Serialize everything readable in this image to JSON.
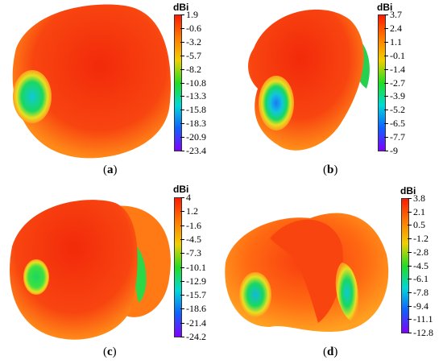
{
  "colors": {
    "palette": [
      "#ff1a00",
      "#ff7a00",
      "#f0d000",
      "#22dd22",
      "#00d8d8",
      "#1060ff",
      "#8000ff"
    ],
    "shape_main": "#f83a10",
    "shape_mid": "#ff7a14",
    "shape_edge": "#ffb020"
  },
  "panels": [
    {
      "id": "a",
      "caption": "a",
      "unit": "dBi",
      "ticks": [
        "1.9",
        "-0.6",
        "-3.2",
        "-5.7",
        "-8.2",
        "-10.8",
        "-13.3",
        "-15.8",
        "-18.3",
        "-20.9",
        "-23.4"
      ]
    },
    {
      "id": "b",
      "caption": "b",
      "unit": "dBi",
      "ticks": [
        "3.7",
        "2.4",
        "1.1",
        "-0.1",
        "-1.4",
        "-2.7",
        "-3.9",
        "-5.2",
        "-6.5",
        "-7.7",
        "-9"
      ]
    },
    {
      "id": "c",
      "caption": "c",
      "unit": "dBi",
      "ticks": [
        "4",
        "1.2",
        "-1.6",
        "-4.5",
        "-7.3",
        "-10.1",
        "-12.9",
        "-15.7",
        "-18.6",
        "-21.4",
        "-24.2"
      ]
    },
    {
      "id": "d",
      "caption": "d",
      "unit": "dBi",
      "ticks": [
        "3.8",
        "2.1",
        "0.5",
        "-1.2",
        "-2.8",
        "-4.5",
        "-6.1",
        "-7.8",
        "-9.4",
        "-11.1",
        "-12.8"
      ]
    }
  ]
}
